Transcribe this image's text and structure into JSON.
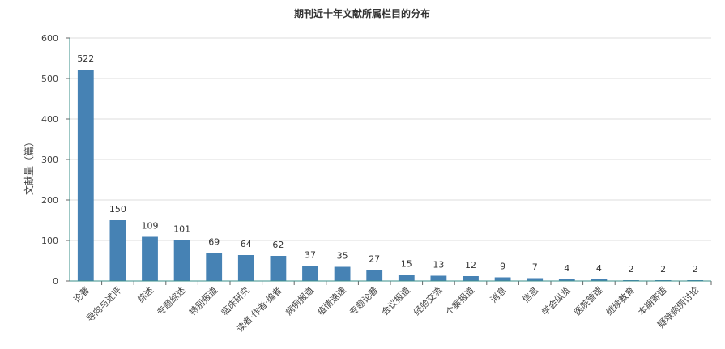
{
  "chart_data": {
    "type": "bar",
    "title": "期刊近十年文献所属栏目的分布",
    "xlabel": "",
    "ylabel": "文献量（篇）",
    "ylim": [
      0,
      600
    ],
    "yticks": [
      0,
      100,
      200,
      300,
      400,
      500,
      600
    ],
    "grid": true,
    "legend": "none",
    "bar_color": "#4682b4",
    "categories": [
      "论著",
      "导向与述评",
      "综述",
      "专题综述",
      "特别报道",
      "临床研究",
      "读者·作者·编者",
      "病例报道",
      "疫情速递",
      "专题论著",
      "会议报道",
      "经验交流",
      "个案报道",
      "消息",
      "信息",
      "学会纵览",
      "医院管理",
      "继续教育",
      "本期寄语",
      "疑难病例讨论"
    ],
    "values": [
      522,
      150,
      109,
      101,
      69,
      64,
      62,
      37,
      35,
      27,
      15,
      13,
      12,
      9,
      7,
      4,
      4,
      2,
      2,
      2
    ]
  }
}
